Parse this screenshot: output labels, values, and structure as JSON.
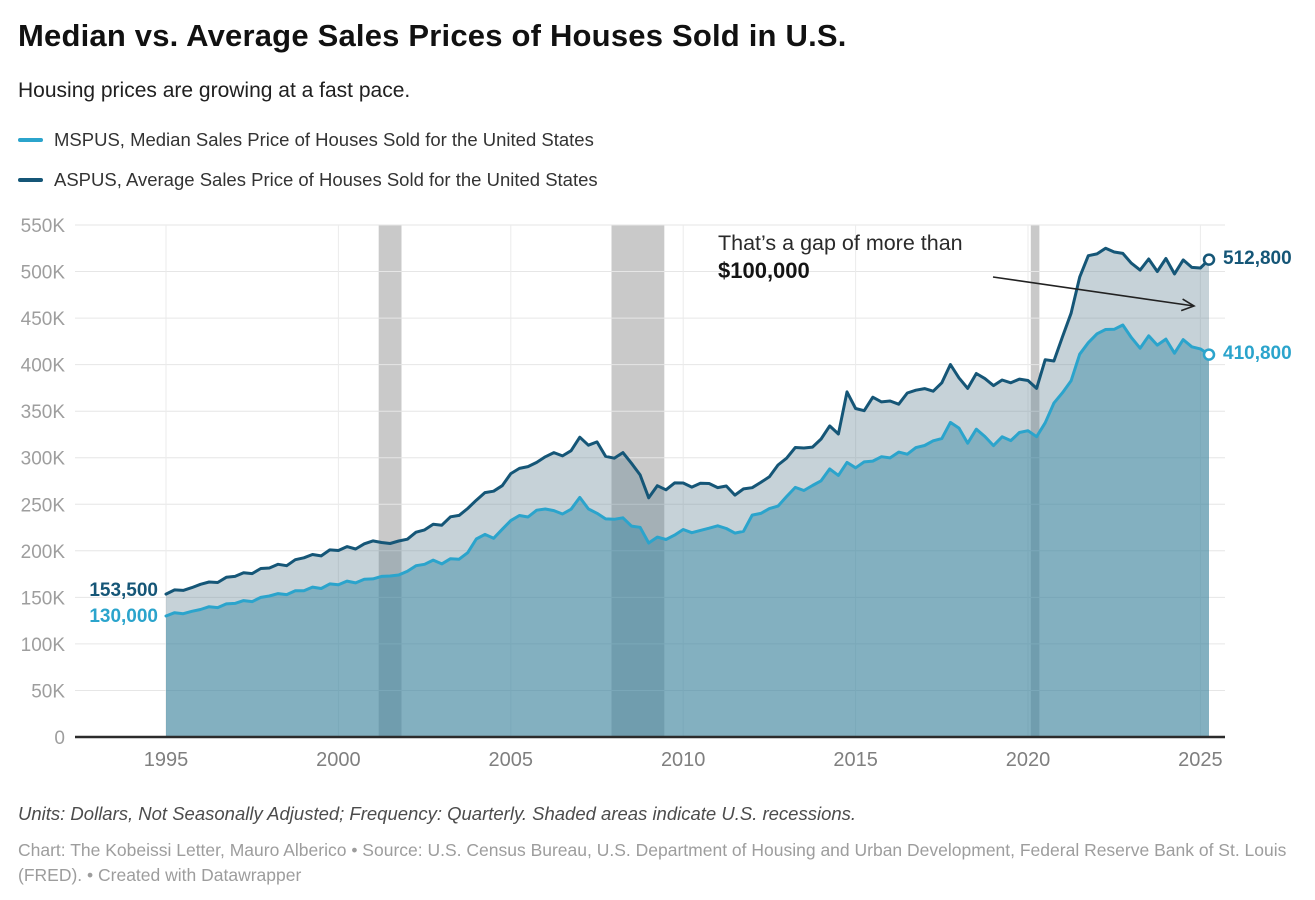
{
  "header": {
    "title": "Median vs. Average Sales Prices of Houses Sold in U.S.",
    "subtitle": "Housing prices are growing at a fast pace."
  },
  "legend": {
    "mspus_label": "MSPUS, Median Sales Price of Houses Sold for the United States",
    "aspus_label": "ASPUS, Average Sales Price of Houses Sold for the United States"
  },
  "annotations": {
    "gap_line1": "That’s a gap of more than",
    "gap_line2": "$100,000",
    "start_avg": "153,500",
    "start_med": "130,000",
    "end_avg": "512,800",
    "end_med": "410,800"
  },
  "footer": {
    "notes": "Units: Dollars, Not Seasonally Adjusted; Frequency: Quarterly. Shaded areas indicate U.S. recessions.",
    "byline": "Chart: The Kobeissi Letter, Mauro Alberico • Source: U.S. Census Bureau, U.S. Department of Housing and Urban Development, Federal Reserve Bank of St. Louis (FRED). • Created with Datawrapper"
  },
  "chart_data": {
    "type": "area",
    "title": "Median vs. Average Sales Prices of Houses Sold in U.S.",
    "frequency": "Quarterly",
    "x_start": 1995,
    "x_step_years": 0.25,
    "xlim": [
      1992.4,
      2025.7
    ],
    "ylim": [
      0,
      550000
    ],
    "x_ticks": [
      1995,
      2000,
      2005,
      2010,
      2015,
      2020,
      2025
    ],
    "y_tick_values": [
      0,
      50000,
      100000,
      150000,
      200000,
      250000,
      300000,
      350000,
      400000,
      450000,
      500000,
      550000
    ],
    "y_tick_labels": [
      "0",
      "50K",
      "100K",
      "150K",
      "200K",
      "250K",
      "300K",
      "350K",
      "400K",
      "450K",
      "500K",
      "550K"
    ],
    "grid": true,
    "legend_position": "top",
    "recessions": [
      [
        2001.17,
        2001.83
      ],
      [
        2007.92,
        2009.45
      ],
      [
        2020.08,
        2020.33
      ]
    ],
    "recession_color": "#c9c9c9",
    "series": [
      {
        "id": "ASPUS",
        "name": "ASPUS, Average Sales Price of Houses Sold for the United States",
        "color": "#155677",
        "fill": "rgba(104,136,153,0.38)",
        "values": [
          153500,
          158000,
          157500,
          160500,
          164000,
          166500,
          166000,
          171500,
          172500,
          176500,
          175500,
          181000,
          181500,
          185500,
          184000,
          190500,
          192500,
          196000,
          194500,
          201000,
          200300,
          204500,
          202000,
          207500,
          210700,
          208900,
          207900,
          210500,
          212500,
          220000,
          222500,
          228500,
          227500,
          236500,
          238000,
          245500,
          254400,
          262500,
          264000,
          270000,
          283000,
          288500,
          290500,
          295000,
          301000,
          305500,
          302000,
          307500,
          322100,
          313500,
          317000,
          301500,
          299500,
          305500,
          294000,
          281500,
          257000,
          270000,
          265500,
          273000,
          272900,
          268500,
          272500,
          272300,
          267900,
          269600,
          259800,
          266500,
          267800,
          273500,
          279500,
          292200,
          299500,
          311000,
          310500,
          311400,
          320100,
          334200,
          325500,
          370700,
          352900,
          350500,
          365000,
          360000,
          360900,
          357500,
          369500,
          372500,
          374300,
          371500,
          380500,
          400100,
          385700,
          374500,
          390500,
          385000,
          377500,
          383500,
          380500,
          384500,
          383000,
          374500,
          405300,
          403900,
          429900,
          455300,
          494000,
          517000,
          519000,
          525100,
          521000,
          519500,
          509000,
          501500,
          513500,
          500000,
          514000,
          497500,
          512500,
          504500,
          503800,
          512800
        ]
      },
      {
        "id": "MSPUS",
        "name": "MSPUS, Median Sales Price of Houses Sold for the United States",
        "color": "#2ba4cc",
        "fill": "rgba(49,135,164,0.45)",
        "values": [
          130000,
          133500,
          132500,
          135000,
          137000,
          140000,
          139000,
          143000,
          143500,
          146500,
          145500,
          150000,
          151500,
          154000,
          153000,
          157000,
          157000,
          161000,
          159500,
          164500,
          163500,
          167500,
          165500,
          169500,
          169800,
          172500,
          172900,
          174000,
          178000,
          184000,
          185500,
          190000,
          186000,
          191500,
          191000,
          198000,
          212700,
          217600,
          213500,
          223100,
          232500,
          237900,
          236300,
          243600,
          244900,
          243200,
          239500,
          244700,
          257400,
          245000,
          240300,
          234300,
          233900,
          235500,
          226600,
          225300,
          208400,
          214700,
          212200,
          216900,
          222900,
          219500,
          221900,
          224300,
          226900,
          224000,
          219000,
          221000,
          238400,
          240200,
          245400,
          248000,
          258400,
          268100,
          264800,
          270200,
          275200,
          288000,
          281000,
          295000,
          289200,
          295500,
          296400,
          301100,
          299800,
          306000,
          303800,
          310900,
          313100,
          318200,
          320500,
          337900,
          331800,
          315600,
          330600,
          322800,
          313000,
          322500,
          318400,
          327100,
          329000,
          322600,
          337500,
          358700,
          369800,
          382600,
          411200,
          423600,
          433100,
          437700,
          438000,
          442600,
          429000,
          417700,
          431000,
          421000,
          427400,
          412300,
          426900,
          419200,
          416900,
          410800
        ]
      }
    ]
  }
}
